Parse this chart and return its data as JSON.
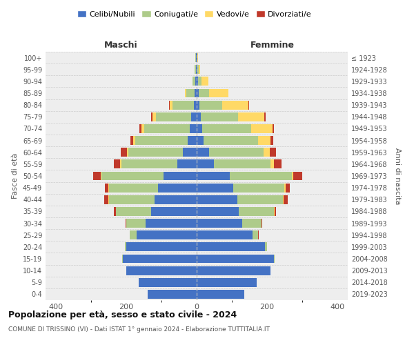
{
  "age_groups": [
    "0-4",
    "5-9",
    "10-14",
    "15-19",
    "20-24",
    "25-29",
    "30-34",
    "35-39",
    "40-44",
    "45-49",
    "50-54",
    "55-59",
    "60-64",
    "65-69",
    "70-74",
    "75-79",
    "80-84",
    "85-89",
    "90-94",
    "95-99",
    "100+"
  ],
  "birth_years": [
    "2019-2023",
    "2014-2018",
    "2009-2013",
    "2004-2008",
    "1999-2003",
    "1994-1998",
    "1989-1993",
    "1984-1988",
    "1979-1983",
    "1974-1978",
    "1969-1973",
    "1964-1968",
    "1959-1963",
    "1954-1958",
    "1949-1953",
    "1944-1948",
    "1939-1943",
    "1934-1938",
    "1929-1933",
    "1924-1928",
    "≤ 1923"
  ],
  "males": {
    "celibi": [
      140,
      165,
      200,
      210,
      200,
      170,
      145,
      130,
      120,
      110,
      95,
      55,
      40,
      25,
      20,
      15,
      8,
      5,
      3,
      2,
      2
    ],
    "coniugati": [
      0,
      0,
      1,
      2,
      5,
      20,
      55,
      100,
      130,
      140,
      175,
      160,
      155,
      150,
      130,
      100,
      60,
      25,
      8,
      3,
      1
    ],
    "vedovi": [
      0,
      0,
      0,
      0,
      0,
      0,
      0,
      0,
      1,
      1,
      2,
      2,
      3,
      5,
      8,
      10,
      8,
      3,
      1,
      0,
      0
    ],
    "divorziati": [
      0,
      0,
      0,
      0,
      0,
      1,
      3,
      5,
      12,
      10,
      22,
      18,
      18,
      8,
      5,
      5,
      2,
      0,
      0,
      0,
      0
    ]
  },
  "females": {
    "nubili": [
      135,
      170,
      210,
      220,
      195,
      160,
      130,
      120,
      115,
      105,
      95,
      50,
      35,
      20,
      15,
      12,
      8,
      5,
      3,
      2,
      1
    ],
    "coniugate": [
      0,
      0,
      1,
      2,
      5,
      15,
      55,
      100,
      130,
      145,
      175,
      160,
      155,
      155,
      140,
      105,
      65,
      30,
      10,
      3,
      1
    ],
    "vedove": [
      0,
      0,
      0,
      0,
      0,
      0,
      0,
      1,
      2,
      3,
      5,
      10,
      18,
      35,
      60,
      75,
      75,
      55,
      20,
      5,
      1
    ],
    "divorziate": [
      0,
      0,
      0,
      0,
      0,
      1,
      2,
      5,
      12,
      12,
      25,
      22,
      18,
      8,
      5,
      5,
      2,
      1,
      0,
      0,
      0
    ]
  },
  "colors": {
    "celibi_nubili": "#4472C4",
    "coniugati": "#AECB8A",
    "vedovi": "#FFD966",
    "divorziati": "#C0392B"
  },
  "title": "Popolazione per età, sesso e stato civile - 2024",
  "subtitle": "COMUNE DI TRISSINO (VI) - Dati ISTAT 1° gennaio 2024 - Elaborazione TUTTITALIA.IT",
  "xlabel_left": "Maschi",
  "xlabel_right": "Femmine",
  "ylabel_left": "Fasce di età",
  "ylabel_right": "Anni di nascita",
  "xlim": 430,
  "background_color": "#ffffff",
  "legend_labels": [
    "Celibi/Nubili",
    "Coniugati/e",
    "Vedovi/e",
    "Divorziati/e"
  ],
  "grid_color": "#cccccc",
  "bar_height": 0.75
}
